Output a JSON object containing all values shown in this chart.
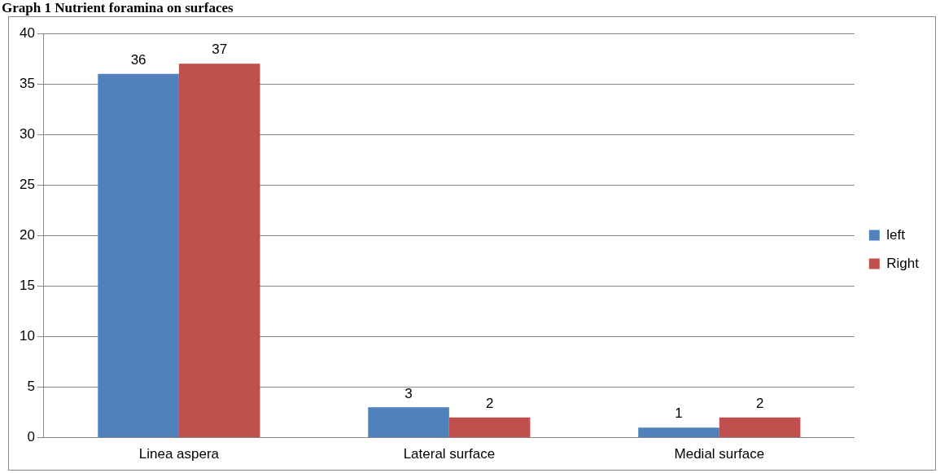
{
  "chart_data": {
    "type": "bar",
    "title": "Graph 1 Nutrient foramina on surfaces",
    "categories": [
      "Linea aspera",
      "Lateral surface",
      "Medial surface"
    ],
    "series": [
      {
        "name": "left",
        "color": "#4f81bd",
        "values": [
          36,
          3,
          1
        ]
      },
      {
        "name": "Right",
        "color": "#c0504d",
        "values": [
          37,
          2,
          2
        ]
      }
    ],
    "ylim": [
      0,
      40
    ],
    "yticks": [
      0,
      5,
      10,
      15,
      20,
      25,
      30,
      35,
      40
    ],
    "grid": "y",
    "legend": "right",
    "data_labels": true
  }
}
